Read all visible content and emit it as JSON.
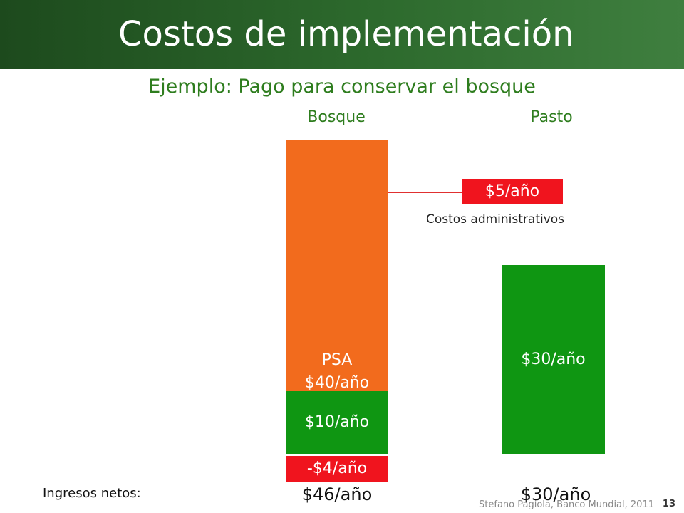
{
  "slide": {
    "title": "Costos de implementación",
    "subtitle": "Ejemplo: Pago para conservar el bosque",
    "footer": "Stefano Pagiola, Banco Mundial, 2011",
    "page_number": "13"
  },
  "colors": {
    "header_green": "#2d6a2d",
    "text_green": "#2e7d1e",
    "psa_orange": "#f26b1d",
    "bar_green": "#0f9612",
    "cost_red": "#f0141e"
  },
  "chart_data": {
    "type": "bar",
    "stacked": true,
    "categories": [
      "Bosque",
      "Pasto"
    ],
    "unit": "$/año",
    "segments": {
      "forest": [
        {
          "label": "-$4/año",
          "value": -4,
          "color": "#f0141e"
        },
        {
          "label": "$10/año",
          "value": 10,
          "color": "#0f9612"
        },
        {
          "label_line1": "PSA",
          "label_line2": "$40/año",
          "value": 40,
          "color": "#f26b1d"
        }
      ],
      "pasture": [
        {
          "label": "$30/año",
          "value": 30,
          "color": "#0f9612"
        }
      ]
    },
    "admin_cost": {
      "label": "$5/año",
      "value": 5,
      "caption": "Costos administrativos",
      "color": "#f0141e"
    },
    "net_income": {
      "label": "Ingresos netos:",
      "values": [
        "$46/año",
        "$30/año"
      ]
    }
  }
}
